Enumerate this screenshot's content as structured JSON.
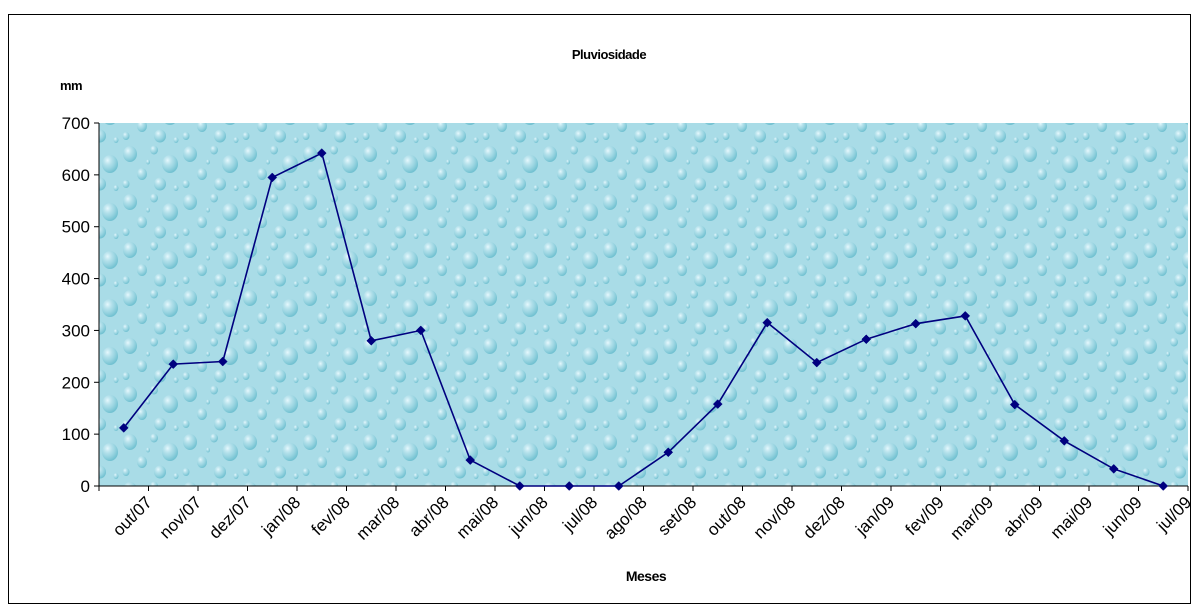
{
  "chart_data": {
    "type": "line",
    "title": "Pluviosidade",
    "unit_label": "mm",
    "xlabel": "Meses",
    "ylabel": "",
    "ylim": [
      0,
      700
    ],
    "yticks": [
      0,
      100,
      200,
      300,
      400,
      500,
      600,
      700
    ],
    "categories": [
      "out/07",
      "nov/07",
      "dez/07",
      "jan/08",
      "fev/08",
      "mar/08",
      "abr/08",
      "mai/08",
      "jun/08",
      "jul/08",
      "ago/08",
      "set/08",
      "out/08",
      "nov/08",
      "dez/08",
      "jan/09",
      "fev/09",
      "mar/09",
      "abr/09",
      "mai/09",
      "jun/09",
      "jul/09"
    ],
    "series": [
      {
        "values": [
          112,
          235,
          240,
          595,
          642,
          280,
          300,
          50,
          0,
          0,
          0,
          65,
          158,
          315,
          238,
          283,
          313,
          328,
          157,
          87,
          33,
          0
        ]
      }
    ],
    "grid": false,
    "legend": "none",
    "colors": {
      "line": "#00007f",
      "marker": "#00007f",
      "plot_bg": "#a8dbe6",
      "drop_light": "#d4f0f6",
      "drop_dark": "#6fc3d3"
    }
  }
}
